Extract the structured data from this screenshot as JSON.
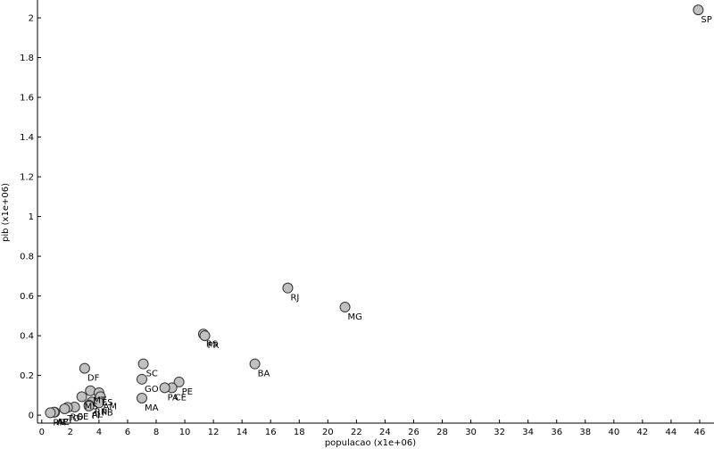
{
  "chart_data": {
    "type": "scatter",
    "xlabel": "populacao (x1e+06)",
    "ylabel": "pib (x1e+06)",
    "xlim": [
      -0.3,
      47
    ],
    "ylim": [
      -0.04,
      2.09
    ],
    "xticks": [
      0,
      2,
      4,
      6,
      8,
      10,
      12,
      14,
      16,
      18,
      20,
      22,
      24,
      26,
      28,
      30,
      32,
      34,
      36,
      38,
      40,
      42,
      44,
      46
    ],
    "yticks": [
      0,
      0.2,
      0.4,
      0.6,
      0.8,
      1,
      1.2,
      1.4,
      1.6,
      1.8,
      2
    ],
    "ytick_labels": [
      "0",
      "0.2",
      "0.4",
      "0.6",
      "0.8",
      "1",
      "1.2",
      "1.4",
      "1.6",
      "1.8",
      "2"
    ],
    "grid": false,
    "marker_fill": "#c0c0c0",
    "marker_edge": "#333333",
    "points": [
      {
        "label": "SP",
        "x": 45.9,
        "y": 2.04
      },
      {
        "label": "RJ",
        "x": 17.2,
        "y": 0.64
      },
      {
        "label": "MG",
        "x": 21.2,
        "y": 0.544
      },
      {
        "label": "RS",
        "x": 11.3,
        "y": 0.408
      },
      {
        "label": "PR",
        "x": 11.4,
        "y": 0.4
      },
      {
        "label": "BA",
        "x": 14.9,
        "y": 0.258
      },
      {
        "label": "SC",
        "x": 7.1,
        "y": 0.258
      },
      {
        "label": "DF",
        "x": 3.0,
        "y": 0.236
      },
      {
        "label": "GO",
        "x": 7.0,
        "y": 0.181
      },
      {
        "label": "PE",
        "x": 9.6,
        "y": 0.167
      },
      {
        "label": "CE",
        "x": 9.1,
        "y": 0.138
      },
      {
        "label": "PA",
        "x": 8.6,
        "y": 0.138
      },
      {
        "label": "MA",
        "x": 7.0,
        "y": 0.086
      },
      {
        "label": "MT",
        "x": 3.4,
        "y": 0.123
      },
      {
        "label": "ES",
        "x": 4.0,
        "y": 0.113
      },
      {
        "label": "MS",
        "x": 2.8,
        "y": 0.093
      },
      {
        "label": "AM",
        "x": 4.1,
        "y": 0.093
      },
      {
        "label": "RN",
        "x": 3.5,
        "y": 0.066
      },
      {
        "label": "PB",
        "x": 4.0,
        "y": 0.062
      },
      {
        "label": "AL",
        "x": 3.3,
        "y": 0.051
      },
      {
        "label": "PI",
        "x": 3.3,
        "y": 0.046
      },
      {
        "label": "SE",
        "x": 2.3,
        "y": 0.041
      },
      {
        "label": "RO",
        "x": 1.8,
        "y": 0.039
      },
      {
        "label": "TO",
        "x": 1.6,
        "y": 0.032
      },
      {
        "label": "AC",
        "x": 0.9,
        "y": 0.015
      },
      {
        "label": "AP",
        "x": 0.85,
        "y": 0.015
      },
      {
        "label": "RR",
        "x": 0.6,
        "y": 0.012
      }
    ]
  }
}
